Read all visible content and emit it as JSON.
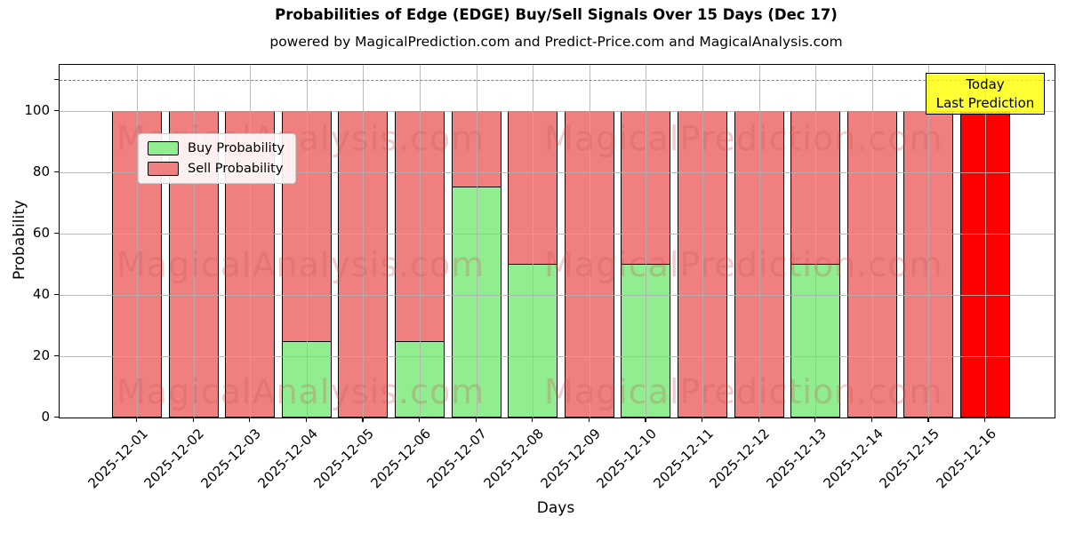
{
  "chart_data": {
    "type": "bar",
    "stacked": true,
    "title": "Probabilities of Edge (EDGE) Buy/Sell Signals Over 15 Days (Dec 17)",
    "subtitle": "powered by MagicalPrediction.com and Predict-Price.com and MagicalAnalysis.com",
    "xlabel": "Days",
    "ylabel": "Probability",
    "categories": [
      "2025-12-01",
      "2025-12-02",
      "2025-12-03",
      "2025-12-04",
      "2025-12-05",
      "2025-12-06",
      "2025-12-07",
      "2025-12-08",
      "2025-12-09",
      "2025-12-10",
      "2025-12-11",
      "2025-12-12",
      "2025-12-13",
      "2025-12-14",
      "2025-12-15",
      "2025-12-16"
    ],
    "series": [
      {
        "name": "Buy Probability",
        "color": "#90ee90",
        "values": [
          0,
          0,
          0,
          24.5,
          0,
          24.5,
          75.5,
          50,
          0,
          50,
          0,
          0,
          50,
          0,
          0,
          0
        ]
      },
      {
        "name": "Sell Probability",
        "color": "#f08080",
        "values": [
          100,
          100,
          100,
          75.5,
          100,
          75.5,
          24.5,
          50,
          100,
          50,
          100,
          100,
          50,
          100,
          100,
          100
        ]
      }
    ],
    "today_index": 15,
    "today_color": "#ff0000",
    "yticks": [
      0,
      20,
      40,
      60,
      80,
      100
    ],
    "ylim": [
      0,
      115
    ],
    "dashed_line_y": 110,
    "grid": true,
    "legend_position": "upper left",
    "annotation": {
      "line1": "Today",
      "line2": "Last Prediction",
      "bg_color": "#ffff00"
    },
    "watermarks": {
      "left": "MagicalAnalysis.com",
      "right": "MagicalPrediction.com"
    },
    "colors": {
      "grid": "#b0b0b0",
      "dashed": "#7f7f7f",
      "bar_edge": "#000000",
      "watermark": "#cd5c5c"
    }
  }
}
